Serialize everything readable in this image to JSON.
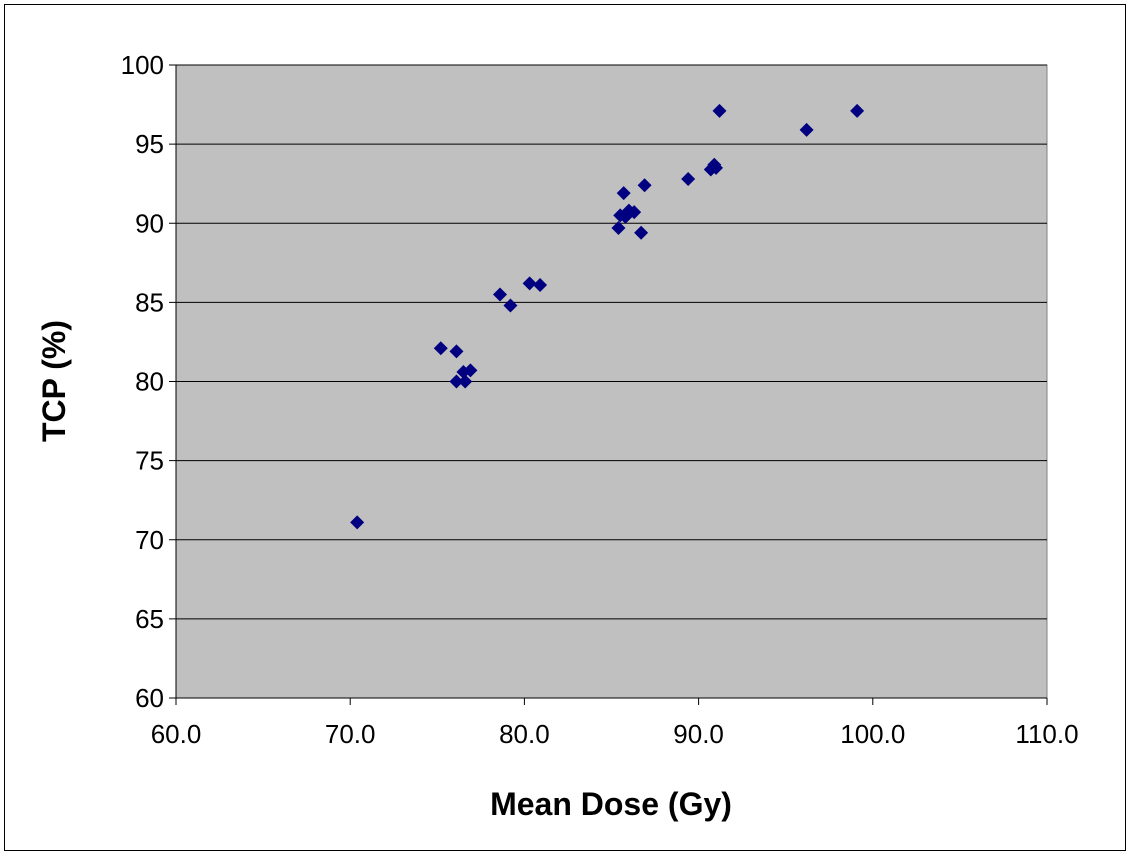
{
  "chart_data": {
    "type": "scatter",
    "title": "",
    "xlabel": "Mean Dose (Gy)",
    "ylabel": "TCP (%)",
    "xlim": [
      60,
      110
    ],
    "ylim": [
      60,
      100
    ],
    "x_ticks": [
      "60.0",
      "70.0",
      "80.0",
      "90.0",
      "100.0",
      "110.0"
    ],
    "y_ticks": [
      "60",
      "65",
      "70",
      "75",
      "80",
      "85",
      "90",
      "95",
      "100"
    ],
    "grid": "horizontal major gridlines",
    "legend": "none",
    "colors": {
      "plot_background": "#c0c0c0",
      "marker": "#000080",
      "gridline": "#000000"
    },
    "marker_shape": "diamond",
    "points": [
      {
        "x": 70.4,
        "y": 71.1
      },
      {
        "x": 75.2,
        "y": 82.1
      },
      {
        "x": 76.1,
        "y": 81.9
      },
      {
        "x": 76.1,
        "y": 80.0
      },
      {
        "x": 76.5,
        "y": 80.6
      },
      {
        "x": 76.6,
        "y": 80.0
      },
      {
        "x": 76.9,
        "y": 80.7
      },
      {
        "x": 78.6,
        "y": 85.5
      },
      {
        "x": 79.2,
        "y": 84.8
      },
      {
        "x": 80.3,
        "y": 86.2
      },
      {
        "x": 80.9,
        "y": 86.1
      },
      {
        "x": 85.4,
        "y": 89.7
      },
      {
        "x": 85.5,
        "y": 90.5
      },
      {
        "x": 85.7,
        "y": 91.9
      },
      {
        "x": 85.8,
        "y": 90.4
      },
      {
        "x": 86.0,
        "y": 90.8
      },
      {
        "x": 86.3,
        "y": 90.7
      },
      {
        "x": 86.7,
        "y": 89.4
      },
      {
        "x": 86.9,
        "y": 92.4
      },
      {
        "x": 89.4,
        "y": 92.8
      },
      {
        "x": 90.7,
        "y": 93.4
      },
      {
        "x": 90.9,
        "y": 93.7
      },
      {
        "x": 91.0,
        "y": 93.5
      },
      {
        "x": 91.2,
        "y": 97.1
      },
      {
        "x": 96.2,
        "y": 95.9
      },
      {
        "x": 99.1,
        "y": 97.1
      }
    ]
  }
}
